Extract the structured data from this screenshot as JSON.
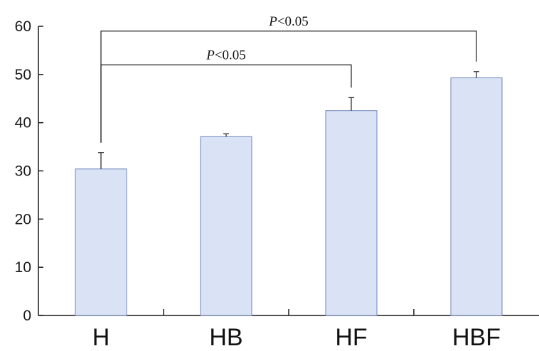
{
  "chart_data": {
    "type": "bar",
    "categories": [
      "H",
      "HB",
      "HF",
      "HBF"
    ],
    "values": [
      30.4,
      37.1,
      42.5,
      49.3
    ],
    "error_up": [
      3.4,
      0.6,
      2.7,
      1.3
    ],
    "ylim": [
      0,
      60
    ],
    "yticks": [
      0,
      10,
      20,
      30,
      40,
      50,
      60
    ],
    "ytick_labels": [
      "0",
      "10",
      "20",
      "30",
      "40",
      "50",
      "60"
    ],
    "title": "",
    "xlabel": "",
    "ylabel": "",
    "grid": false,
    "colors": {
      "bar_fill": "#d9e3f5",
      "bar_stroke": "#6f86ba",
      "axis": "#1a1a1a"
    },
    "annotations": [
      {
        "from": "H",
        "to": "HBF",
        "p_symbol": "P",
        "p_rest": "<0.05",
        "y": 59
      },
      {
        "from": "H",
        "to": "HF",
        "p_symbol": "P",
        "p_rest": "<0.05",
        "y": 52
      }
    ]
  }
}
